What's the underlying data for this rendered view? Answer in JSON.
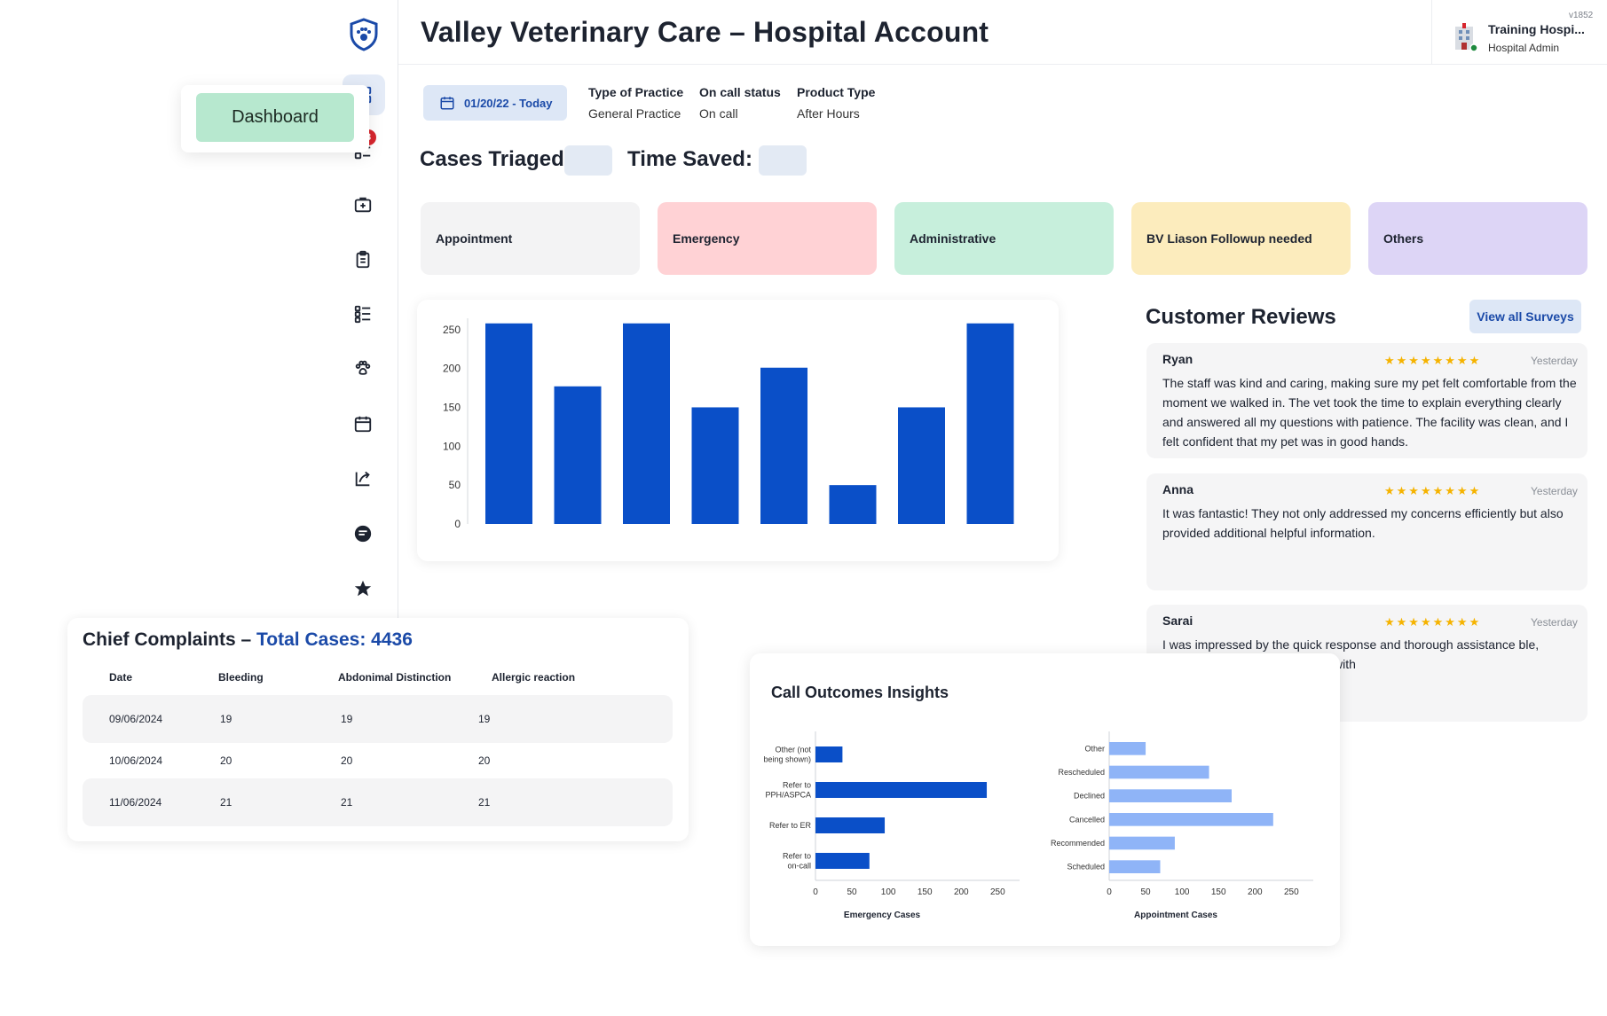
{
  "header": {
    "title": "Valley Veterinary Care – Hospital Account",
    "version": "v1852",
    "user_name": "Training Hospi...",
    "user_role": "Hospital Admin"
  },
  "sidebar": {
    "tooltip_label": "Dashboard",
    "badge": "3",
    "items": [
      {
        "icon": "dashboard-icon"
      },
      {
        "icon": "task-list-icon"
      },
      {
        "icon": "medical-case-icon"
      },
      {
        "icon": "clipboard-icon"
      },
      {
        "icon": "checklist-icon"
      },
      {
        "icon": "paw-icon"
      },
      {
        "icon": "calendar-icon"
      },
      {
        "icon": "export-icon"
      },
      {
        "icon": "chat-icon"
      },
      {
        "icon": "star-icon"
      }
    ]
  },
  "filters": {
    "date_range": "01/20/22 - Today",
    "type_of_practice_label": "Type of Practice",
    "type_of_practice_value": "General Practice",
    "on_call_label": "On call status",
    "on_call_value": "On call",
    "product_type_label": "Product Type",
    "product_type_value": "After Hours"
  },
  "kpis": {
    "cases_triaged_label": "Cases Triaged:",
    "time_saved_label": "Time Saved:"
  },
  "categories": [
    {
      "label": "Appointment",
      "color": "#f3f3f4"
    },
    {
      "label": "Emergency",
      "color": "#ffd2d5"
    },
    {
      "label": "Administrative",
      "color": "#c7efdc"
    },
    {
      "label": "BV Liason Followup needed",
      "color": "#fcecbd"
    },
    {
      "label": "Others",
      "color": "#ddd5f6"
    }
  ],
  "chart_data": [
    {
      "type": "bar",
      "title": "",
      "xlabel": "",
      "ylabel": "",
      "categories": [
        "",
        "",
        "",
        "",
        "",
        "",
        "",
        ""
      ],
      "values": [
        258,
        177,
        258,
        150,
        201,
        50,
        150,
        258
      ],
      "ylim": [
        0,
        260
      ],
      "yticks": [
        0,
        50,
        100,
        150,
        200,
        250
      ],
      "color": "#0a4fc8"
    },
    {
      "type": "bar",
      "orientation": "horizontal",
      "title": "Call Outcomes Insights",
      "xlabel": "Emergency Cases",
      "categories": [
        "Other (not being shown)",
        "Refer to PPH/ASPCA",
        "Refer to ER",
        "Refer to on-call"
      ],
      "values": [
        37,
        235,
        95,
        74
      ],
      "xlim": [
        0,
        280
      ],
      "xticks": [
        0,
        50,
        100,
        150,
        200,
        250
      ],
      "color": "#0a4fc8"
    },
    {
      "type": "bar",
      "orientation": "horizontal",
      "xlabel": "Appointment Cases",
      "categories": [
        "Other",
        "Rescheduled",
        "Declined",
        "Cancelled",
        "Recommended",
        "Scheduled"
      ],
      "values": [
        50,
        137,
        168,
        225,
        90,
        70
      ],
      "xlim": [
        0,
        280
      ],
      "xticks": [
        0,
        50,
        100,
        150,
        200,
        250
      ],
      "color": "#8fb4f7"
    }
  ],
  "reviews": {
    "title": "Customer Reviews",
    "view_all_label": "View all Surveys",
    "stars": "★★★★★★★★",
    "items": [
      {
        "name": "Ryan",
        "time": "Yesterday",
        "text": "The staff was kind and caring, making sure my pet felt comfortable from the moment we walked in. The vet took the time to explain everything clearly and answered all my questions with patience. The facility was clean, and I felt confident that my pet was in good hands."
      },
      {
        "name": "Anna",
        "time": "Yesterday",
        "text": "It was fantastic! They not only addressed my concerns efficiently but also provided additional helpful information."
      },
      {
        "name": "Sarai",
        "time": "Yesterday",
        "text": " I was impressed by the quick response and thorough assistance ble, patient, and resolved my issue with"
      }
    ]
  },
  "complaints": {
    "title": "Chief Complaints – ",
    "total": "Total Cases: 4436",
    "headers": [
      "Date",
      "Bleeding",
      "Abdonimal Distinction",
      "Allergic reaction"
    ],
    "rows": [
      [
        "09/06/2024",
        "19",
        "19",
        "19"
      ],
      [
        "10/06/2024",
        "20",
        "20",
        "20"
      ],
      [
        "11/06/2024",
        "21",
        "21",
        "21"
      ]
    ]
  },
  "outcomes": {
    "title": "Call Outcomes Insights"
  }
}
